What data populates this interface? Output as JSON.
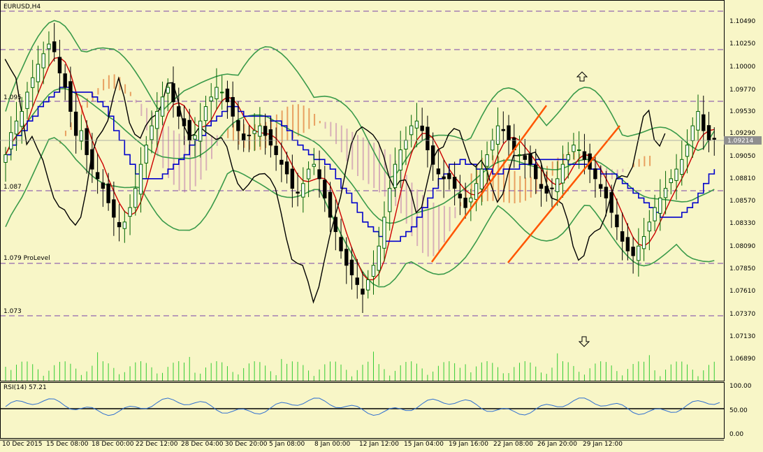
{
  "window": {
    "title": "EURUSD,H4"
  },
  "main_panel": {
    "price_axis_labels": [
      "1.10490",
      "1.10250",
      "1.10000",
      "1.09770",
      "1.09530",
      "1.09290",
      "1.09050",
      "1.08810",
      "1.08570",
      "1.08330",
      "1.08090",
      "1.07850",
      "1.07610",
      "1.07370",
      "1.07130",
      "1.06890"
    ],
    "current_price": "1.09214",
    "level_labels": [
      "1.095",
      "1.087",
      "1.079 ProLevel",
      "1.073"
    ],
    "arrows": [
      "up-arrow",
      "down-arrow"
    ]
  },
  "rsi_panel": {
    "title": "RSI(14) 57.21",
    "axis_labels": [
      "100.00",
      "50.00",
      "0.00"
    ]
  },
  "time_axis": {
    "labels": [
      "10 Dec 2015",
      "15 Dec 08:00",
      "18 Dec 00:00",
      "22 Dec 12:00",
      "28 Dec 04:00",
      "30 Dec 20:00",
      "5 Jan 08:00",
      "8 Jan 00:00",
      "12 Jan 12:00",
      "15 Jan 04:00",
      "19 Jan 16:00",
      "22 Jan 08:00",
      "26 Jan 20:00",
      "29 Jan 12:00"
    ]
  },
  "colors": {
    "background": "#f8f6c7",
    "bull_candle": "#006400",
    "bear_candle": "#000000",
    "kijun": "#0000cc",
    "tenkan": "#cc0000",
    "chikou": "#000000",
    "bollinger": "#3a9a4a",
    "cloud_up": "#e8a060",
    "cloud_down": "#d8b0b8",
    "trendline": "#ff5500",
    "level_line": "#7a44a8",
    "rsi_line": "#3070d0",
    "volume": "#33cc33"
  },
  "chart_data": {
    "type": "candlestick",
    "symbol": "EURUSD",
    "timeframe": "H4",
    "ylim": [
      1.067,
      1.106
    ],
    "rsi_last": 57.21,
    "rsi_ylim": [
      0,
      100
    ],
    "close": [
      1.0905,
      1.0928,
      1.094,
      1.095,
      1.097,
      1.0985,
      1.0999,
      1.101,
      1.102,
      1.1012,
      1.099,
      1.0975,
      1.095,
      1.0925,
      1.093,
      1.0905,
      1.089,
      1.088,
      1.087,
      1.0855,
      1.084,
      1.083,
      1.0835,
      1.085,
      1.087,
      1.0895,
      1.0915,
      1.0935,
      1.095,
      1.0965,
      1.0975,
      1.096,
      1.0945,
      1.0935,
      1.092,
      1.0925,
      1.094,
      1.0955,
      1.0965,
      1.0975,
      1.097,
      1.096,
      1.0945,
      1.093,
      1.092,
      1.0925,
      1.093,
      1.0935,
      1.0925,
      1.0915,
      1.0905,
      1.0895,
      1.0885,
      1.087,
      1.0865,
      1.0875,
      1.089,
      1.0895,
      1.088,
      1.086,
      1.084,
      1.0825,
      1.0805,
      1.079,
      1.078,
      1.077,
      1.076,
      1.0775,
      1.079,
      1.081,
      1.084,
      1.087,
      1.0895,
      1.091,
      1.092,
      1.0935,
      1.094,
      1.093,
      1.091,
      1.0895,
      1.0885,
      1.088,
      1.088,
      1.087,
      1.086,
      1.085,
      1.086,
      1.0875,
      1.089,
      1.0905,
      1.092,
      1.0935,
      1.093,
      1.092,
      1.091,
      1.0905,
      1.09,
      1.0895,
      1.088,
      1.087,
      1.0865,
      1.087,
      1.088,
      1.0895,
      1.0905,
      1.0915,
      1.091,
      1.09,
      1.089,
      1.088,
      1.087,
      1.086,
      1.0845,
      1.083,
      1.0815,
      1.0805,
      1.08,
      1.081,
      1.082,
      1.0835,
      1.085,
      1.086,
      1.087,
      1.088,
      1.089,
      1.09,
      1.0915,
      1.0935,
      1.095,
      1.093,
      1.092,
      1.0921
    ]
  }
}
